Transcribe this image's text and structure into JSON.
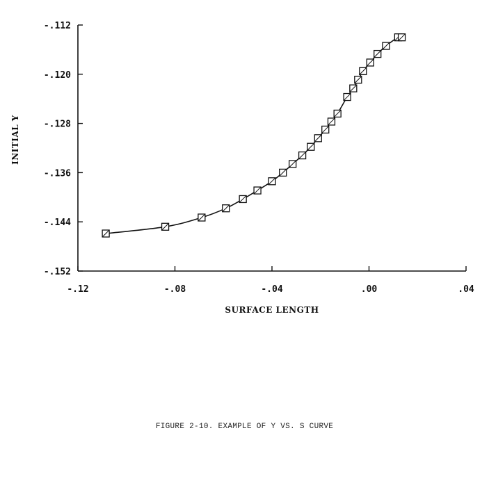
{
  "caption": "FIGURE 2-10.  EXAMPLE OF Y VS. S CURVE",
  "chart_data": {
    "type": "line",
    "title": "",
    "xlabel": "SURFACE LENGTH",
    "ylabel": "INITIAL Y",
    "xlim": [
      -0.12,
      0.04
    ],
    "ylim": [
      -0.152,
      -0.112
    ],
    "x_ticks": [
      -0.12,
      -0.08,
      -0.04,
      0.0,
      0.04
    ],
    "x_tick_labels": [
      "-.12",
      "-.08",
      "-.04",
      ".00",
      ".04"
    ],
    "y_ticks": [
      -0.112,
      -0.12,
      -0.128,
      -0.136,
      -0.144,
      -0.152
    ],
    "y_tick_labels": [
      "-.112",
      "-.120",
      "-.128",
      "-.136",
      "-.144",
      "-.152"
    ],
    "grid": false,
    "legend": "none",
    "marker": "square",
    "series": [
      {
        "x": [
          -0.1085,
          -0.084,
          -0.069,
          -0.059,
          -0.052,
          -0.046,
          -0.04,
          -0.0355,
          -0.0315,
          -0.0275,
          -0.024,
          -0.021,
          -0.018,
          -0.0155,
          -0.013,
          -0.009,
          -0.0065,
          -0.0045,
          -0.0025,
          0.0005,
          0.0035,
          0.007,
          0.012,
          0.0135
        ],
        "y": [
          -0.1459,
          -0.1448,
          -0.1433,
          -0.1418,
          -0.1403,
          -0.1389,
          -0.1374,
          -0.136,
          -0.1346,
          -0.1332,
          -0.1318,
          -0.1304,
          -0.129,
          -0.1277,
          -0.1264,
          -0.1237,
          -0.1223,
          -0.1209,
          -0.1195,
          -0.1181,
          -0.1167,
          -0.1154,
          -0.114,
          -0.114
        ]
      }
    ]
  }
}
